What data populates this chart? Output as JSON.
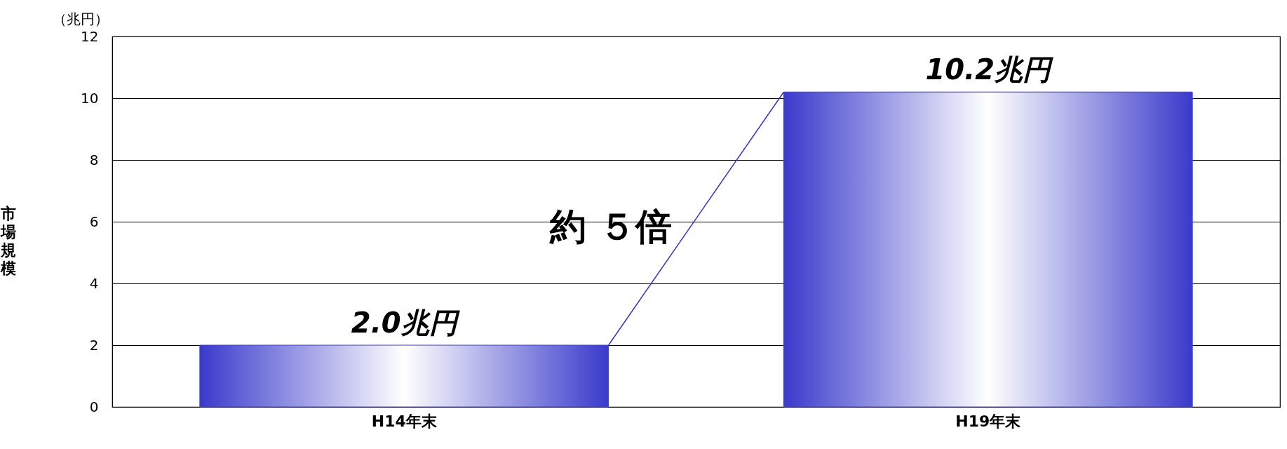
{
  "chart_data": {
    "type": "bar",
    "ylabel": "市場規模",
    "categories": [
      "H14年末",
      "H19年末"
    ],
    "values": [
      2.0,
      10.2
    ],
    "value_labels": [
      "2.0兆円",
      "10.2兆円"
    ],
    "color": "#3a3acc",
    "ylim": [
      0,
      12
    ],
    "yticks": [
      0,
      2,
      4,
      6,
      8,
      10,
      12
    ],
    "grid": "y",
    "annotations": [
      "（兆円）",
      "約 ５倍"
    ]
  }
}
